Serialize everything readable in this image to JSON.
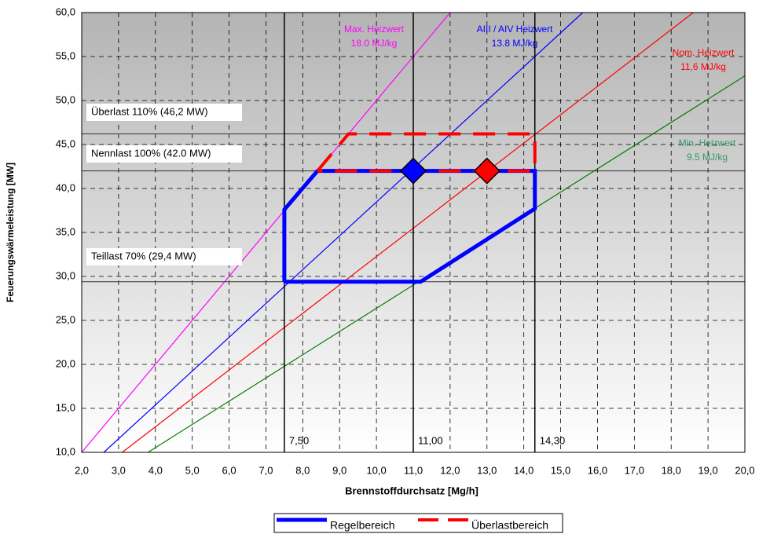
{
  "chart_data": {
    "type": "line",
    "xlabel": "Brennstoffdurchsatz [Mg/h]",
    "ylabel": "Feuerungswärmeleistung [MW]",
    "xlim": [
      2,
      20
    ],
    "ylim": [
      10,
      60
    ],
    "xticks": [
      {
        "value": 2,
        "label": "2,0"
      },
      {
        "value": 3,
        "label": "3,0"
      },
      {
        "value": 4,
        "label": "4,0"
      },
      {
        "value": 5,
        "label": "5,0"
      },
      {
        "value": 6,
        "label": "6,0"
      },
      {
        "value": 7,
        "label": "7,0"
      },
      {
        "value": 8,
        "label": "8,0"
      },
      {
        "value": 9,
        "label": "9,0"
      },
      {
        "value": 10,
        "label": "10,0"
      },
      {
        "value": 11,
        "label": "11,0"
      },
      {
        "value": 12,
        "label": "12,0"
      },
      {
        "value": 13,
        "label": "13,0"
      },
      {
        "value": 14,
        "label": "14,0"
      },
      {
        "value": 15,
        "label": "15,0"
      },
      {
        "value": 16,
        "label": "16,0"
      },
      {
        "value": 17,
        "label": "17,0"
      },
      {
        "value": 18,
        "label": "18,0"
      },
      {
        "value": 19,
        "label": "19,0"
      },
      {
        "value": 20,
        "label": "20,0"
      }
    ],
    "yticks": [
      {
        "value": 10,
        "label": "10,0"
      },
      {
        "value": 15,
        "label": "15,0"
      },
      {
        "value": 20,
        "label": "20,0"
      },
      {
        "value": 25,
        "label": "25,0"
      },
      {
        "value": 30,
        "label": "30,0"
      },
      {
        "value": 35,
        "label": "35,0"
      },
      {
        "value": 40,
        "label": "40,0"
      },
      {
        "value": 45,
        "label": "45,0"
      },
      {
        "value": 50,
        "label": "50,0"
      },
      {
        "value": 55,
        "label": "55,0"
      },
      {
        "value": 60,
        "label": "60,0"
      }
    ],
    "grid": true,
    "heating_value_lines": [
      {
        "label_lines": [
          "Max. Heizwert",
          "18.0 MJ/kg"
        ],
        "color": "#ff00ff",
        "x": [
          2,
          12
        ],
        "values": [
          10,
          60
        ]
      },
      {
        "label_lines": [
          "AIII / AIV Heizwert",
          "13.8 MJ/kg"
        ],
        "color": "#0000ff",
        "x": [
          2.6,
          15.6
        ],
        "values": [
          10,
          60
        ]
      },
      {
        "label_lines": [
          "Nom. Heizwert",
          "11,6 MJ/kg"
        ],
        "color": "#ff0000",
        "x": [
          3.1,
          18.6
        ],
        "values": [
          10,
          60
        ]
      },
      {
        "label_lines": [
          "Min. Heizwert",
          "9.5 MJ/kg"
        ],
        "color": "#008000",
        "x": [
          3.8,
          20
        ],
        "values": [
          10,
          52.8
        ]
      }
    ],
    "hlines": [
      {
        "value": 46.2,
        "label": "Überlast 110% (46,2 MW)"
      },
      {
        "value": 42,
        "label": "Nennlast 100% (42.0 MW)"
      },
      {
        "value": 29.4,
        "label": "Teillast 70% (29,4 MW)"
      }
    ],
    "vlines": [
      {
        "value": 7.5,
        "label": "7,50"
      },
      {
        "value": 11,
        "label": "11,00"
      },
      {
        "value": 14.3,
        "label": "14,30"
      }
    ],
    "series": [
      {
        "name": "Regelbereich",
        "color": "#0000ff",
        "dashed": false,
        "x": [
          7.5,
          7.5,
          8.4,
          14.3,
          14.3,
          11.2,
          7.5
        ],
        "values": [
          29.4,
          37.6,
          42,
          42,
          37.7,
          29.4,
          29.4
        ]
      },
      {
        "name": "Überlastbereich",
        "color": "#ff0000",
        "dashed": true,
        "x": [
          8.4,
          9.24,
          14.3,
          14.3,
          8.4
        ],
        "values": [
          42,
          46.2,
          46.2,
          42,
          42
        ]
      }
    ],
    "markers": [
      {
        "x": 11,
        "value": 42,
        "color": "#0000ff"
      },
      {
        "x": 13,
        "value": 42,
        "color": "#ff0000"
      }
    ]
  }
}
